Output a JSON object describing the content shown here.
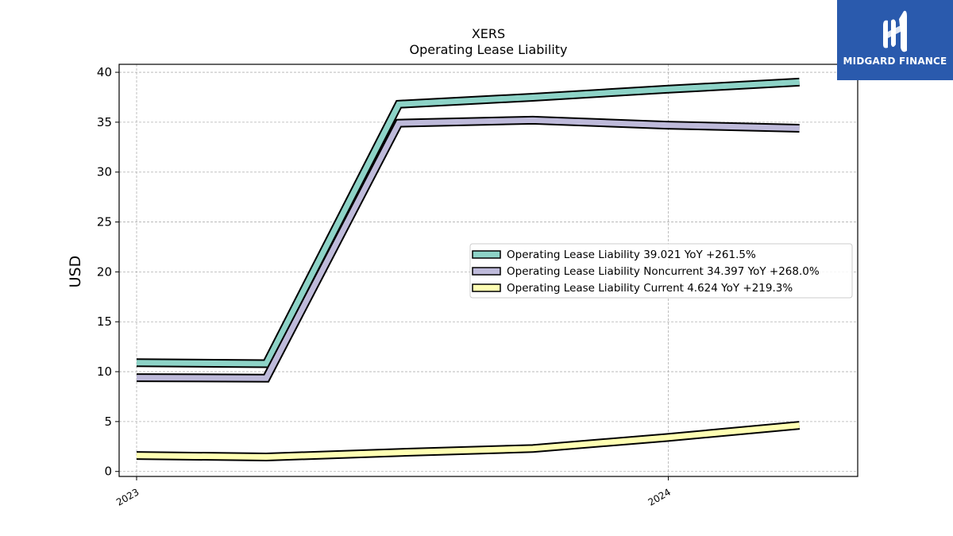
{
  "brand": {
    "name": "MIDGARD FINANCE",
    "bg_color": "#2a5aad"
  },
  "chart_data": {
    "type": "line",
    "title": "XERS",
    "subtitle": "Operating Lease Liability",
    "xlabel": "",
    "ylabel": "USD",
    "ylim": [
      -0.5,
      40.8
    ],
    "yticks": [
      0,
      5,
      10,
      15,
      20,
      25,
      30,
      35,
      40
    ],
    "xticks": [
      {
        "label": "2023",
        "date": "2023-01-01"
      },
      {
        "label": "2024",
        "date": "2024-01-01"
      }
    ],
    "x": [
      "2023-01-01",
      "2023-03-31",
      "2023-06-30",
      "2023-09-30",
      "2023-12-31",
      "2024-03-31"
    ],
    "grid": true,
    "legend_position": "center-right",
    "series": [
      {
        "name": "Operating Lease Liability  39.021 YoY +261.5%",
        "color": "#8dd3c7",
        "values": [
          10.9,
          10.8,
          36.8,
          37.5,
          38.3,
          39.021
        ]
      },
      {
        "name": "Operating Lease Liability Noncurrent  34.397 YoY +268.0%",
        "color": "#bebada",
        "values": [
          9.4,
          9.35,
          34.9,
          35.2,
          34.7,
          34.397
        ]
      },
      {
        "name": "Operating Lease Liability Current  4.624 YoY +219.3%",
        "color": "#ffffb3",
        "values": [
          1.6,
          1.45,
          1.9,
          2.3,
          3.4,
          4.624
        ]
      }
    ]
  }
}
